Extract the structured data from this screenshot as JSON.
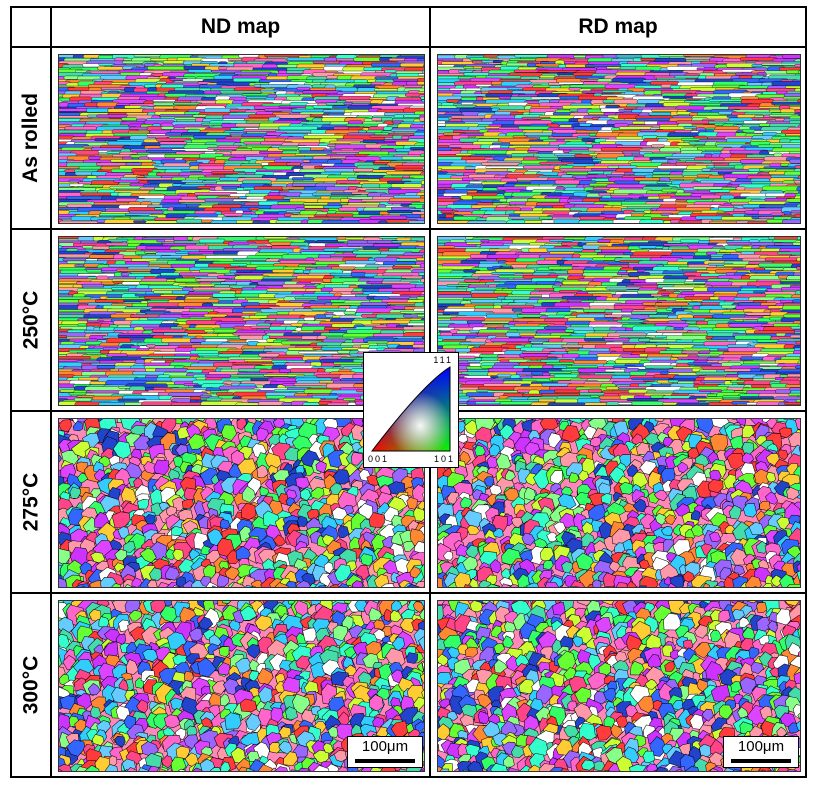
{
  "columns": {
    "nd": "ND map",
    "rd": "RD map"
  },
  "rows": [
    "As rolled",
    "250°C",
    "275°C",
    "300°C"
  ],
  "scale_bar": "100μm",
  "ipf_key": {
    "top": "111",
    "bottom_left": "001",
    "bottom_right": "101"
  },
  "colors": {
    "grain_palette": [
      "#ff3b3b",
      "#ff66cc",
      "#cc33ff",
      "#3366ff",
      "#2244cc",
      "#33ccff",
      "#33ffcc",
      "#33ff66",
      "#66ff33",
      "#ccff33",
      "#ffcc33",
      "#ff8833",
      "#ff99aa",
      "#9966ff",
      "#66ccff",
      "#ffffff",
      "#ff4488",
      "#44ddaa",
      "#88ff88",
      "#dd44ff"
    ],
    "grain_boundary": "#000000"
  }
}
